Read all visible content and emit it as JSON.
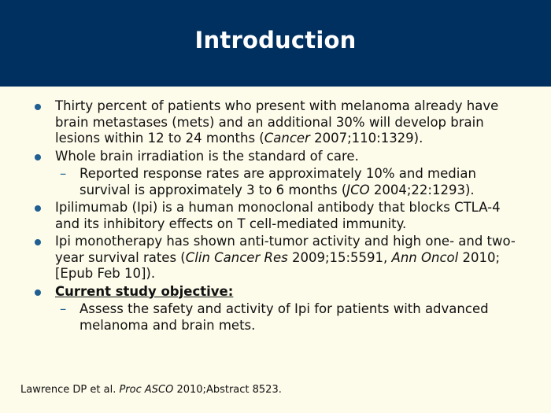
{
  "slide": {
    "title": "Introduction",
    "bullets": [
      {
        "pre": "Thirty percent of patients who present with melanoma already have brain metastases (mets) and an additional 30% will develop brain lesions within 12 to 24 months (",
        "italic": "Cancer",
        "post": " 2007;110:1329)."
      },
      {
        "text": "Whole brain irradiation is the standard of care."
      },
      {
        "pre": "Reported response rates are approximately 10% and median survival is approximately 3 to 6 months (",
        "italic": "JCO",
        "post": " 2004;22:1293)."
      },
      {
        "text": "Ipilimumab (Ipi) is a human monoclonal antibody that blocks CTLA-4 and its inhibitory effects on T cell-mediated immunity."
      },
      {
        "pre": "Ipi monotherapy has shown anti-tumor activity and high one- and two-year survival rates (",
        "italic": "Clin Cancer Res",
        "mid": " 2009;15:5591, ",
        "italic2": "Ann Oncol",
        "post": " 2010;[Epub Feb 10])."
      },
      {
        "text": "Current study objective:"
      },
      {
        "text": "Assess the safety and activity of Ipi for patients with advanced melanoma and brain mets."
      }
    ],
    "footer": {
      "pre": "Lawrence DP et al. ",
      "italic": "Proc ASCO",
      "post": " 2010;Abstract 8523."
    }
  },
  "colors": {
    "header": "#00305f",
    "background": "#fdfbea",
    "bullet": "#1f5f92"
  }
}
